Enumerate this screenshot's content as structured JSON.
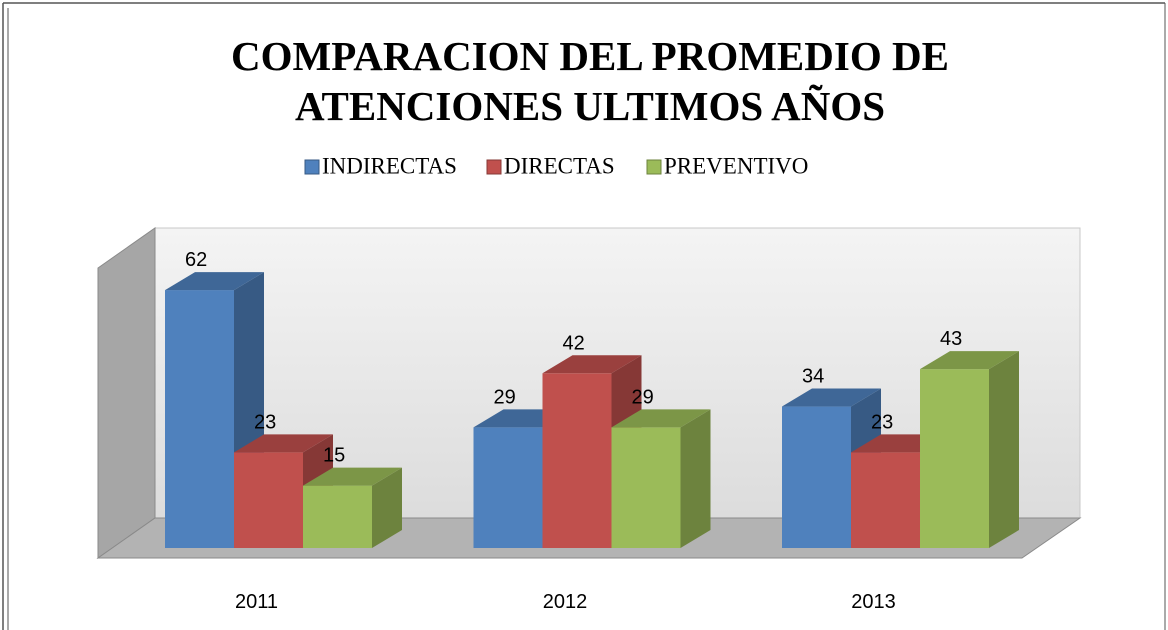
{
  "chart_data": {
    "type": "bar3d",
    "title": [
      "COMPARACION DEL PROMEDIO DE",
      "ATENCIONES  ULTIMOS AÑOS"
    ],
    "categories": [
      "2011",
      "2012",
      "2013"
    ],
    "series": [
      {
        "name": "INDIRECTAS",
        "color": "#4f81bd",
        "values": [
          62,
          29,
          34
        ]
      },
      {
        "name": "DIRECTAS",
        "color": "#c0504d",
        "values": [
          23,
          42,
          23
        ]
      },
      {
        "name": "PREVENTIVO",
        "color": "#9bbb59",
        "values": [
          15,
          29,
          43
        ]
      }
    ],
    "legend": "top"
  }
}
